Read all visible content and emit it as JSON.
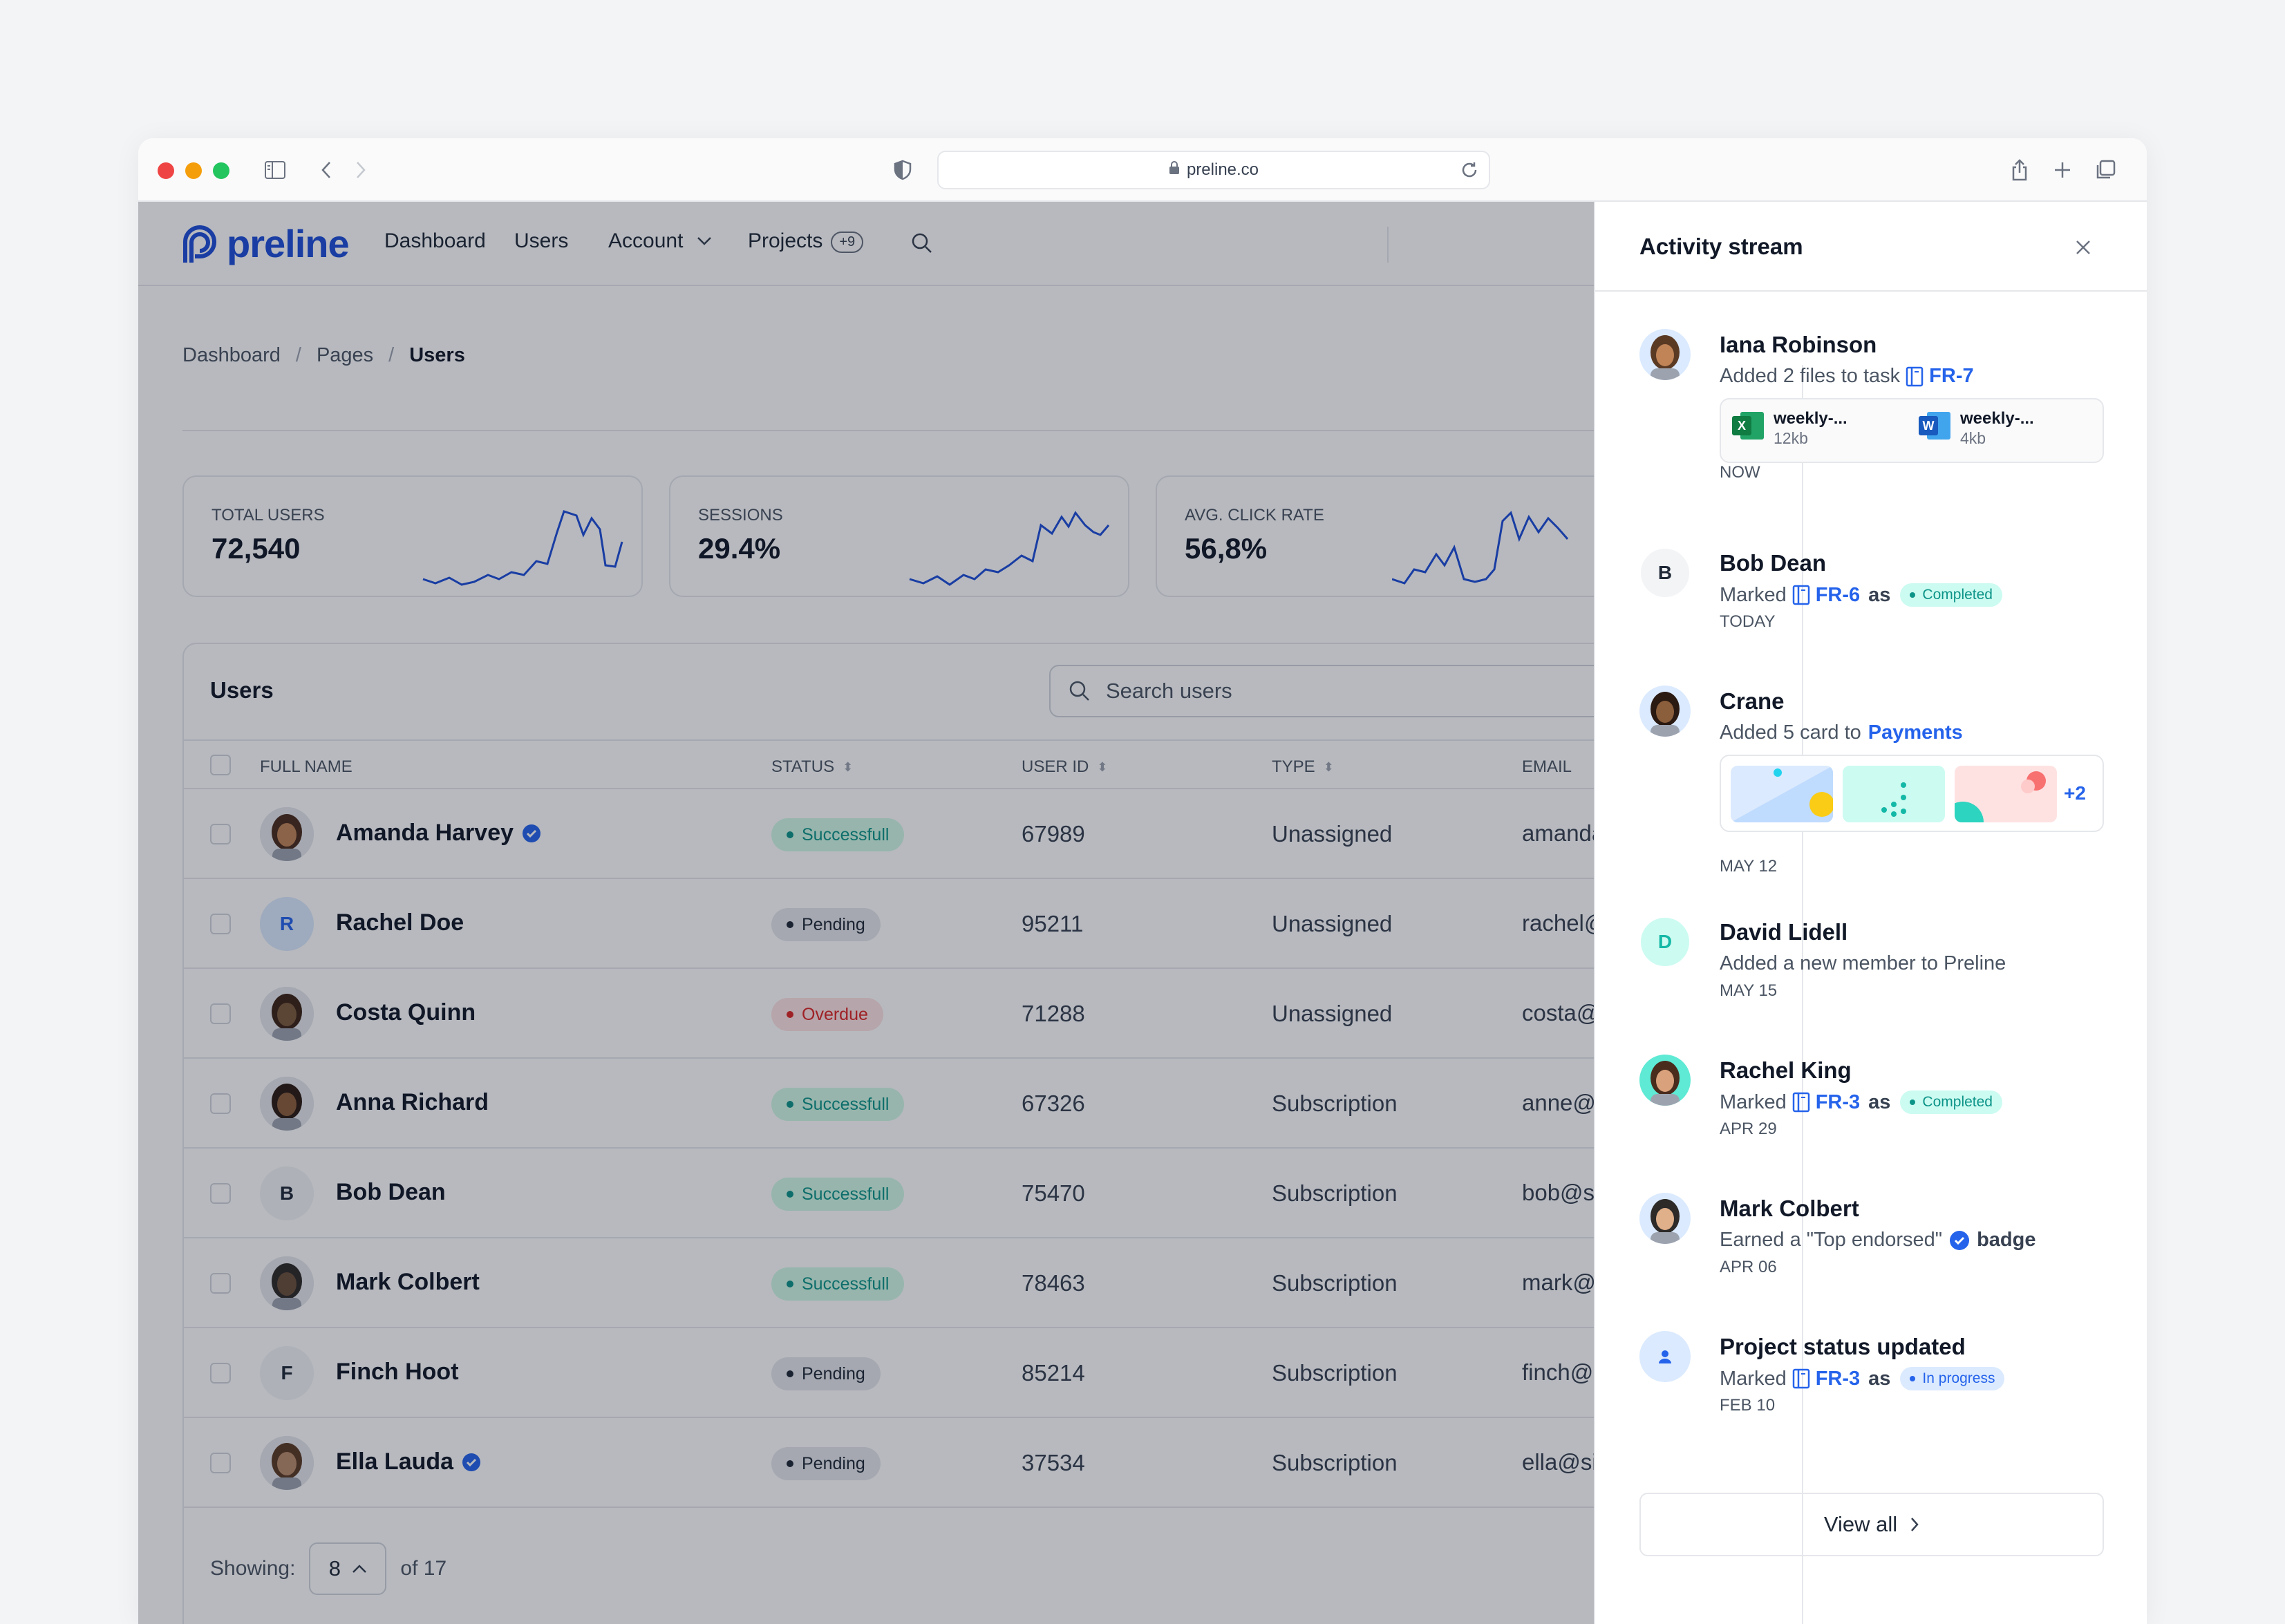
{
  "browser": {
    "url": "preline.co"
  },
  "nav": {
    "logo": "preline",
    "items": [
      "Dashboard",
      "Users",
      "Account",
      "Projects"
    ],
    "projects_count": "+9"
  },
  "breadcrumb": [
    "Dashboard",
    "Pages",
    "Users"
  ],
  "stats": [
    {
      "label": "Total users",
      "value": "72,540"
    },
    {
      "label": "Sessions",
      "value": "29.4%"
    },
    {
      "label": "Avg. click rate",
      "value": "56,8%"
    }
  ],
  "users_table": {
    "title": "Users",
    "search_placeholder": "Search users",
    "columns": [
      "Full name",
      "Status",
      "User ID",
      "Type",
      "Email"
    ],
    "rows": [
      {
        "name": "Amanda Harvey",
        "status": "Successfull",
        "id": "67989",
        "type": "Unassigned",
        "email": "amanda@site.com",
        "initial": ""
      },
      {
        "name": "Rachel Doe",
        "status": "Pending",
        "id": "95211",
        "type": "Unassigned",
        "email": "rachel@site.com",
        "initial": "R"
      },
      {
        "name": "Costa Quinn",
        "status": "Overdue",
        "id": "71288",
        "type": "Unassigned",
        "email": "costa@site.com",
        "initial": ""
      },
      {
        "name": "Anna Richard",
        "status": "Successfull",
        "id": "67326",
        "type": "Subscription",
        "email": "anne@site.com",
        "initial": ""
      },
      {
        "name": "Bob Dean",
        "status": "Successfull",
        "id": "75470",
        "type": "Subscription",
        "email": "bob@site.com",
        "initial": "B"
      },
      {
        "name": "Mark Colbert",
        "status": "Successfull",
        "id": "78463",
        "type": "Subscription",
        "email": "mark@site.com",
        "initial": ""
      },
      {
        "name": "Finch Hoot",
        "status": "Pending",
        "id": "85214",
        "type": "Subscription",
        "email": "finch@site.com",
        "initial": "F"
      },
      {
        "name": "Ella Lauda",
        "status": "Pending",
        "id": "37534",
        "type": "Subscription",
        "email": "ella@site.com",
        "initial": ""
      }
    ],
    "footer": {
      "showing_label": "Showing:",
      "page_size": "8",
      "total": "of 17"
    }
  },
  "activity": {
    "title": "Activity stream",
    "view_all": "View all",
    "events": [
      {
        "name": "Iana Robinson",
        "text": "Added 2 files to task",
        "task": "FR-7",
        "time": "NOW",
        "files": [
          {
            "name": "weekly-...",
            "size": "12kb"
          },
          {
            "name": "weekly-...",
            "size": "4kb"
          }
        ]
      },
      {
        "name": "Bob Dean",
        "initial": "B",
        "text": "Marked",
        "task": "FR-6",
        "as": "as",
        "badge": "Completed",
        "time": "TODAY"
      },
      {
        "name": "Crane",
        "text": "Added 5 card to",
        "link": "Payments",
        "more": "+2",
        "time": "MAY 12"
      },
      {
        "name": "David Lidell",
        "initial": "D",
        "text": "Added a new member to Preline",
        "time": "MAY 15"
      },
      {
        "name": "Rachel King",
        "text": "Marked",
        "task": "FR-3",
        "as": "as",
        "badge": "Completed",
        "time": "APR 29"
      },
      {
        "name": "Mark Colbert",
        "text": "Earned a \"Top endorsed\"",
        "tail": "badge",
        "time": "APR 06"
      },
      {
        "name": "Project status updated",
        "text": "Marked",
        "task": "FR-3",
        "as": "as",
        "badge": "In progress",
        "time": "FEB 10"
      }
    ]
  },
  "colors": {
    "brand": "#1d4ed8",
    "success": "#0d9488",
    "overdue": "#dc2626",
    "link": "#2563eb"
  }
}
